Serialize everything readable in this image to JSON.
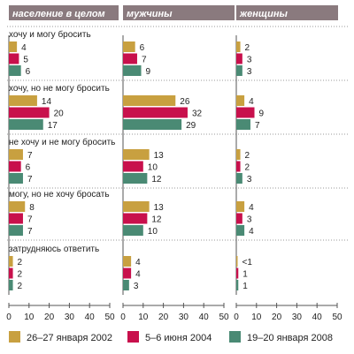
{
  "chart_data": {
    "type": "bar",
    "orientation": "horizontal",
    "panels": [
      "население в целом",
      "мужчины",
      "женщины"
    ],
    "categories": [
      "хочу и могу бросить",
      "хочу, но не могу бросить",
      "не хочу и не могу бросить",
      "могу, но не хочу бросать",
      "затрудняюсь ответить"
    ],
    "series": [
      {
        "name": "26–27 января 2002",
        "color": "#c8a040",
        "values": [
          [
            4,
            14,
            7,
            8,
            2
          ],
          [
            6,
            26,
            13,
            13,
            4
          ],
          [
            2,
            4,
            2,
            4,
            0.5
          ]
        ],
        "labels": [
          [
            "4",
            "14",
            "7",
            "8",
            "2"
          ],
          [
            "6",
            "26",
            "13",
            "13",
            "4"
          ],
          [
            "2",
            "4",
            "2",
            "4",
            "<1"
          ]
        ]
      },
      {
        "name": "5–6 июня 2004",
        "color": "#c8104c",
        "values": [
          [
            5,
            20,
            6,
            7,
            2
          ],
          [
            7,
            32,
            10,
            12,
            4
          ],
          [
            3,
            9,
            2,
            3,
            1
          ]
        ],
        "labels": [
          [
            "5",
            "20",
            "6",
            "7",
            "2"
          ],
          [
            "7",
            "32",
            "10",
            "12",
            "4"
          ],
          [
            "3",
            "9",
            "2",
            "3",
            "1"
          ]
        ]
      },
      {
        "name": "19–20 января 2008",
        "color": "#4a8a74",
        "values": [
          [
            6,
            17,
            7,
            7,
            2
          ],
          [
            9,
            29,
            12,
            10,
            3
          ],
          [
            3,
            7,
            3,
            4,
            1
          ]
        ],
        "labels": [
          [
            "6",
            "17",
            "7",
            "7",
            "2"
          ],
          [
            "9",
            "29",
            "12",
            "10",
            "3"
          ],
          [
            "3",
            "7",
            "3",
            "4",
            "1"
          ]
        ]
      }
    ],
    "xlim": [
      0,
      50
    ],
    "xticks": [
      "0",
      "10",
      "20",
      "30",
      "40",
      "50"
    ],
    "header_color": "#8a7a7e",
    "title": "",
    "xlabel": "",
    "ylabel": ""
  }
}
